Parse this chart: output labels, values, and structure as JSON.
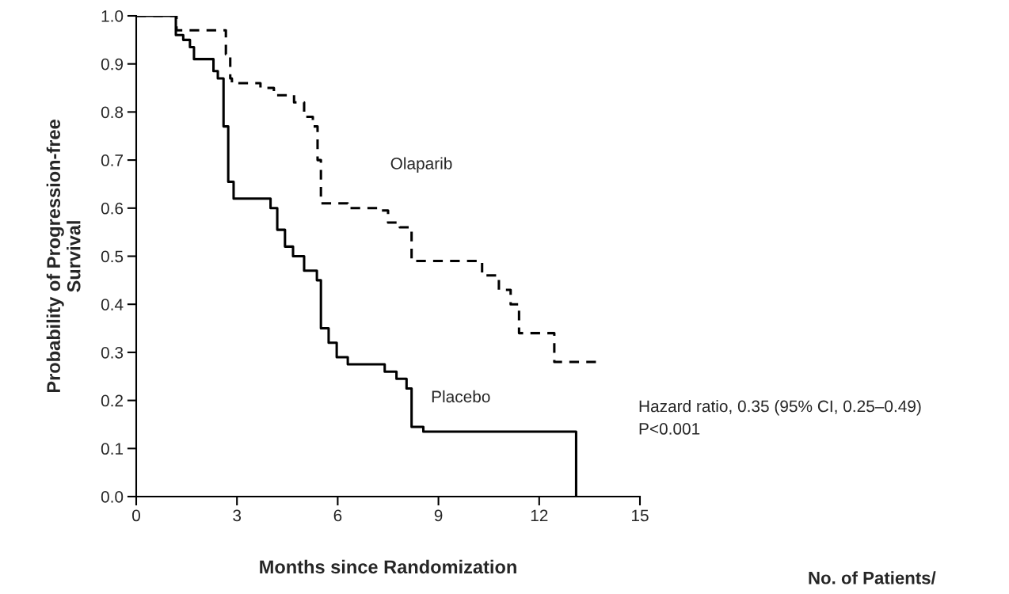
{
  "chart_data": {
    "type": "step",
    "xlabel": "Months since Randomization",
    "ylabel": "Probability of Progression-free\nSurvival",
    "xlim": [
      0,
      15
    ],
    "xticks": [
      0,
      3,
      6,
      9,
      12,
      15
    ],
    "ylim": [
      0,
      1.0
    ],
    "yticks": [
      {
        "value": 0,
        "label": "0.0"
      },
      0.1,
      0.2,
      0.3,
      0.4,
      0.5,
      0.6,
      0.7,
      0.8,
      0.9,
      {
        "value": 1,
        "label": "1.0"
      }
    ],
    "grid": false,
    "legend": false,
    "series": [
      {
        "name": "Olaparib",
        "color": "#000000",
        "line_style": "dashed",
        "x": [
          0,
          1.01,
          1.2,
          2.3,
          2.67,
          2.8,
          2.85,
          3.7,
          4.1,
          4.7,
          5.0,
          5.26,
          5.4,
          5.5,
          6.3,
          7.3,
          7.5,
          7.85,
          8.2,
          10.0,
          10.3,
          10.8,
          11.15,
          11.4,
          12.4,
          12.45,
          13.75
        ],
        "values": [
          1.0,
          1.0,
          0.97,
          0.97,
          0.92,
          0.87,
          0.86,
          0.85,
          0.835,
          0.82,
          0.79,
          0.77,
          0.7,
          0.61,
          0.6,
          0.595,
          0.57,
          0.56,
          0.49,
          0.49,
          0.46,
          0.43,
          0.4,
          0.34,
          0.34,
          0.28,
          0.28
        ]
      },
      {
        "name": "Placebo",
        "color": "#000000",
        "line_style": "solid",
        "x": [
          0,
          1.08,
          1.18,
          1.4,
          1.6,
          1.72,
          2.07,
          2.3,
          2.43,
          2.6,
          2.74,
          2.9,
          3.6,
          4.0,
          4.2,
          4.43,
          4.67,
          5.0,
          5.38,
          5.5,
          5.73,
          5.97,
          6.3,
          7.2,
          7.4,
          7.75,
          8.05,
          8.2,
          8.55,
          13.1,
          13.1
        ],
        "values": [
          1.0,
          1.0,
          0.96,
          0.95,
          0.935,
          0.91,
          0.91,
          0.885,
          0.87,
          0.77,
          0.655,
          0.62,
          0.62,
          0.6,
          0.555,
          0.52,
          0.5,
          0.47,
          0.45,
          0.35,
          0.32,
          0.29,
          0.275,
          0.275,
          0.26,
          0.245,
          0.225,
          0.145,
          0.135,
          0.135,
          0.0
        ]
      }
    ],
    "annotations": [
      "Hazard ratio, 0.35 (95% CI, 0.25–0.49)\nP<0.001",
      "No. of Patients/"
    ]
  }
}
